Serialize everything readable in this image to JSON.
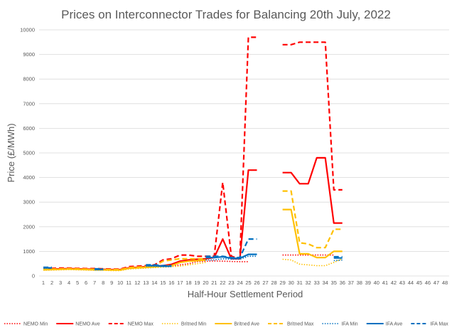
{
  "chart_data": {
    "type": "line",
    "title": "Prices on Interconnector Trades for Balancing 20th July, 2022",
    "xlabel": "Half-Hour Settlement Period",
    "ylabel": "Price (£/MWh)",
    "ylim": [
      0,
      10000
    ],
    "yticks": [
      0,
      1000,
      2000,
      3000,
      4000,
      5000,
      6000,
      7000,
      8000,
      9000,
      10000
    ],
    "x": [
      1,
      2,
      3,
      4,
      5,
      6,
      7,
      8,
      9,
      10,
      11,
      12,
      13,
      14,
      15,
      16,
      17,
      18,
      19,
      20,
      21,
      22,
      23,
      24,
      25,
      26,
      27,
      28,
      29,
      30,
      31,
      32,
      33,
      34,
      35,
      36,
      37,
      38,
      39,
      40,
      41,
      42,
      43,
      44,
      45,
      46,
      47,
      48
    ],
    "grid": "horizontal",
    "legend_position": "bottom",
    "series": [
      {
        "name": "NEMO Min",
        "color": "#ff0000",
        "dash": "dotted",
        "values": [
          250,
          260,
          270,
          280,
          270,
          260,
          250,
          250,
          240,
          250,
          300,
          330,
          340,
          360,
          380,
          400,
          450,
          500,
          580,
          600,
          610,
          600,
          590,
          580,
          580,
          null,
          null,
          null,
          850,
          850,
          850,
          850,
          850,
          850,
          850,
          null,
          null,
          null,
          null,
          null,
          null,
          null,
          null,
          null,
          null,
          null,
          null,
          null
        ]
      },
      {
        "name": "NEMO Ave",
        "color": "#ff0000",
        "dash": "solid",
        "values": [
          270,
          280,
          290,
          300,
          290,
          280,
          270,
          270,
          260,
          260,
          330,
          350,
          380,
          400,
          420,
          470,
          600,
          650,
          680,
          700,
          750,
          1500,
          700,
          700,
          4300,
          4300,
          null,
          null,
          4200,
          4200,
          3750,
          3750,
          4800,
          4800,
          2150,
          2150,
          null,
          null,
          null,
          null,
          null,
          null,
          null,
          null,
          null,
          null,
          null,
          null
        ]
      },
      {
        "name": "NEMO Max",
        "color": "#ff0000",
        "dash": "dashed",
        "values": [
          300,
          310,
          320,
          320,
          310,
          300,
          300,
          290,
          280,
          280,
          380,
          400,
          420,
          450,
          650,
          700,
          850,
          850,
          800,
          800,
          800,
          3800,
          800,
          700,
          9700,
          9700,
          null,
          null,
          9400,
          9400,
          9500,
          9500,
          9500,
          9500,
          3500,
          3500,
          null,
          null,
          null,
          null,
          null,
          null,
          null,
          null,
          null,
          null,
          null,
          null
        ]
      },
      {
        "name": "Britned Min",
        "color": "#ffc000",
        "dash": "dotted",
        "values": [
          230,
          240,
          250,
          260,
          250,
          240,
          230,
          230,
          220,
          220,
          280,
          300,
          320,
          340,
          360,
          380,
          400,
          450,
          500,
          550,
          null,
          null,
          null,
          null,
          null,
          null,
          null,
          null,
          680,
          650,
          480,
          450,
          420,
          420,
          550,
          700,
          null,
          null,
          null,
          null,
          null,
          null,
          null,
          null,
          null,
          null,
          null,
          null
        ]
      },
      {
        "name": "Britned Ave",
        "color": "#ffc000",
        "dash": "solid",
        "values": [
          250,
          260,
          270,
          280,
          270,
          260,
          250,
          250,
          240,
          240,
          310,
          330,
          350,
          370,
          400,
          420,
          550,
          600,
          620,
          650,
          null,
          null,
          null,
          null,
          null,
          null,
          null,
          null,
          2700,
          2700,
          900,
          900,
          750,
          750,
          1000,
          1000,
          null,
          null,
          null,
          null,
          null,
          null,
          null,
          null,
          null,
          null,
          null,
          null
        ]
      },
      {
        "name": "Britned Max",
        "color": "#ffc000",
        "dash": "dashed",
        "values": [
          270,
          280,
          290,
          300,
          290,
          280,
          270,
          270,
          260,
          260,
          340,
          360,
          380,
          400,
          600,
          650,
          700,
          700,
          700,
          700,
          null,
          null,
          null,
          null,
          null,
          null,
          null,
          null,
          3450,
          3450,
          1350,
          1300,
          1150,
          1150,
          1900,
          1900,
          null,
          null,
          null,
          null,
          null,
          null,
          null,
          null,
          null,
          null,
          null,
          null
        ]
      },
      {
        "name": "IFA Min",
        "color": "#0070c0",
        "dash": "dotted",
        "values": [
          320,
          320,
          null,
          null,
          null,
          null,
          250,
          250,
          null,
          null,
          null,
          null,
          400,
          400,
          380,
          380,
          null,
          null,
          null,
          650,
          650,
          700,
          680,
          680,
          800,
          800,
          null,
          null,
          null,
          null,
          null,
          null,
          null,
          null,
          620,
          650,
          null,
          null,
          null,
          null,
          null,
          null,
          null,
          null,
          null,
          null,
          null,
          null
        ]
      },
      {
        "name": "IFA Ave",
        "color": "#0070c0",
        "dash": "solid",
        "values": [
          330,
          330,
          null,
          null,
          null,
          null,
          270,
          270,
          null,
          null,
          null,
          null,
          420,
          420,
          400,
          400,
          null,
          null,
          null,
          750,
          750,
          780,
          720,
          720,
          880,
          880,
          null,
          null,
          null,
          null,
          null,
          null,
          null,
          null,
          730,
          730,
          null,
          null,
          null,
          null,
          null,
          null,
          null,
          null,
          null,
          null,
          null,
          null
        ]
      },
      {
        "name": "IFA Max",
        "color": "#0070c0",
        "dash": "dashed",
        "values": [
          350,
          350,
          null,
          null,
          null,
          null,
          290,
          290,
          null,
          null,
          null,
          null,
          450,
          450,
          420,
          420,
          null,
          null,
          null,
          800,
          800,
          800,
          750,
          750,
          1500,
          1500,
          null,
          null,
          null,
          null,
          null,
          null,
          null,
          null,
          780,
          780,
          null,
          null,
          null,
          null,
          null,
          null,
          null,
          null,
          null,
          null,
          null,
          null
        ]
      }
    ]
  }
}
